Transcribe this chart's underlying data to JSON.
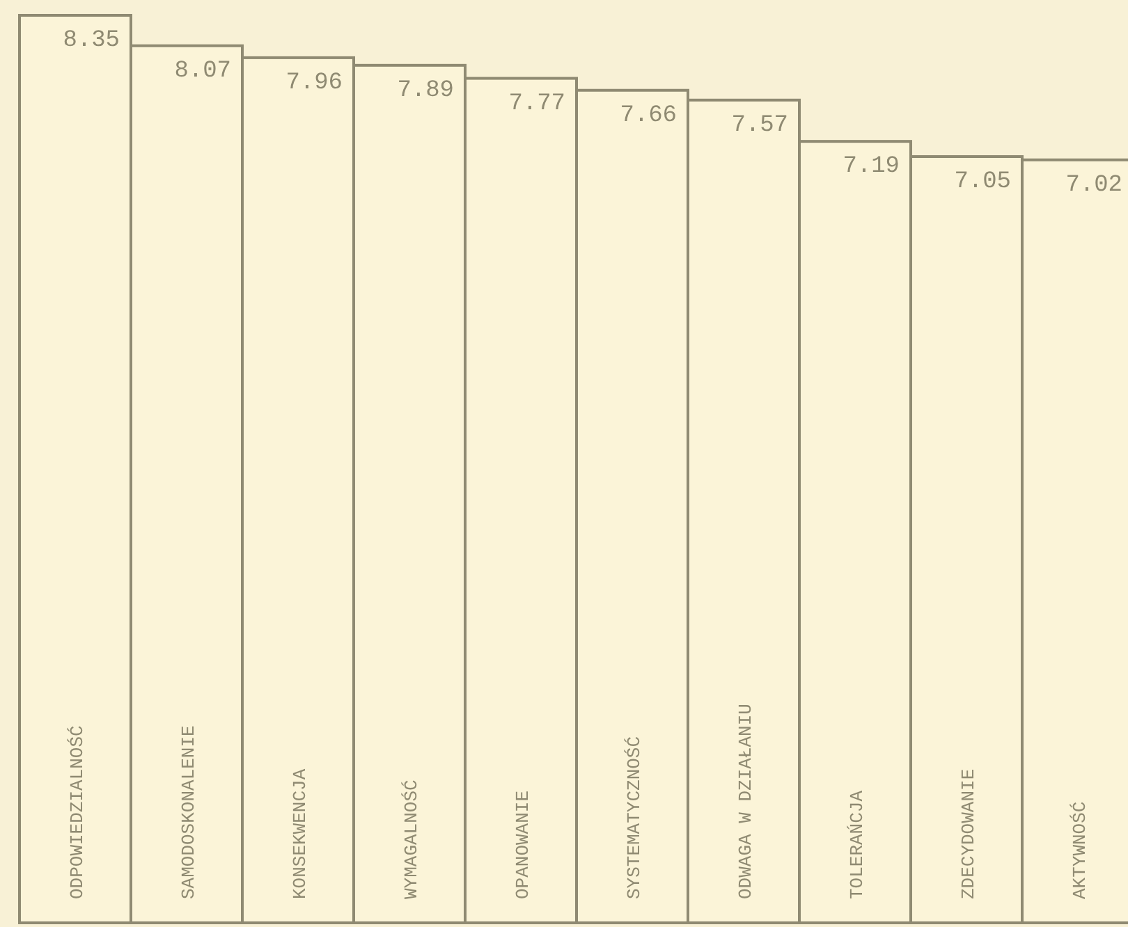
{
  "chart_data": {
    "type": "bar",
    "categories": [
      "ODPOWIEDZIALNOŚĆ",
      "SAMODOSKONALENIE",
      "KONSEKWENCJA",
      "WYMAGALNOŚĆ",
      "OPANOWANIE",
      "SYSTEMATYCZNOŚĆ",
      "ODWAGA W DZIAŁANIU",
      "TOLERAŃCJA",
      "ZDECYDOWANIE",
      "AKTYWNOŚĆ"
    ],
    "values": [
      8.35,
      8.07,
      7.96,
      7.89,
      7.77,
      7.66,
      7.57,
      7.19,
      7.05,
      7.02
    ],
    "color": "#fbf4d8",
    "tick_labels": false,
    "data_labels": true
  }
}
